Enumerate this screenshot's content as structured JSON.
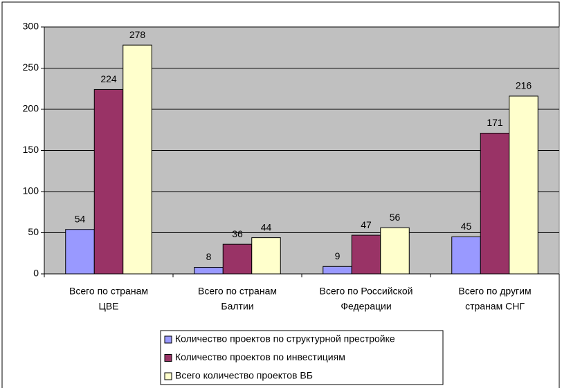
{
  "chart_data": {
    "type": "bar",
    "categories": [
      [
        "Всего по странам",
        "ЦВЕ"
      ],
      [
        "Всего по странам",
        "Балтии"
      ],
      [
        "Всего по Российской",
        "Федерации"
      ],
      [
        "Всего по другим",
        "странам СНГ"
      ]
    ],
    "series": [
      {
        "name": "Количество проектов по структурной престройке",
        "color": "#9999ff",
        "values": [
          54,
          8,
          9,
          45
        ]
      },
      {
        "name": "Количество проектов по инвестициям",
        "color": "#993366",
        "values": [
          224,
          36,
          47,
          171
        ]
      },
      {
        "name": "Всего количество проектов ВБ",
        "color": "#ffffcc",
        "values": [
          278,
          44,
          56,
          216
        ]
      }
    ],
    "ylim": [
      0,
      300
    ],
    "yticks": [
      0,
      50,
      100,
      150,
      200,
      250,
      300
    ],
    "grid": true,
    "legend": "bottom",
    "plot_background": "#c0c0c0"
  }
}
